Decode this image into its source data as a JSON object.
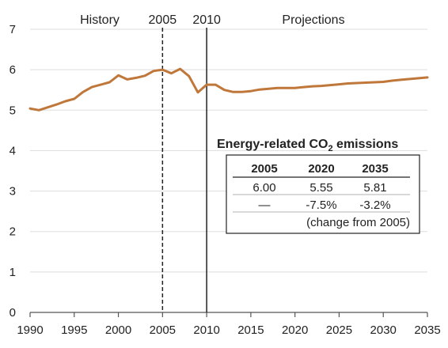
{
  "chart_data": {
    "type": "line",
    "title": "",
    "xlabel": "",
    "ylabel": "",
    "xlim": [
      1990,
      2035
    ],
    "ylim": [
      0,
      7
    ],
    "x_ticks": [
      1990,
      1995,
      2000,
      2005,
      2010,
      2015,
      2020,
      2025,
      2030,
      2035
    ],
    "y_ticks": [
      0,
      1,
      2,
      3,
      4,
      5,
      6,
      7
    ],
    "grid": "horizontal",
    "series": [
      {
        "color": "#c0773a",
        "x": [
          1990,
          1991,
          1992,
          1993,
          1994,
          1995,
          1996,
          1997,
          1998,
          1999,
          2000,
          2001,
          2002,
          2003,
          2004,
          2005,
          2006,
          2007,
          2008,
          2009,
          2010,
          2011,
          2012,
          2013,
          2014,
          2015,
          2016,
          2017,
          2018,
          2019,
          2020,
          2021,
          2022,
          2023,
          2024,
          2025,
          2026,
          2027,
          2028,
          2029,
          2030,
          2031,
          2032,
          2033,
          2034,
          2035
        ],
        "y": [
          5.04,
          5.0,
          5.07,
          5.14,
          5.22,
          5.28,
          5.45,
          5.57,
          5.63,
          5.69,
          5.86,
          5.76,
          5.8,
          5.85,
          5.97,
          6.0,
          5.91,
          6.02,
          5.84,
          5.44,
          5.63,
          5.63,
          5.5,
          5.45,
          5.45,
          5.47,
          5.51,
          5.53,
          5.55,
          5.55,
          5.55,
          5.57,
          5.59,
          5.6,
          5.62,
          5.64,
          5.66,
          5.67,
          5.68,
          5.69,
          5.7,
          5.73,
          5.75,
          5.77,
          5.79,
          5.81
        ]
      }
    ],
    "reference_lines": [
      {
        "x": 2005,
        "style": "dashed",
        "label": "2005"
      },
      {
        "x": 2010,
        "style": "solid",
        "label": "2010"
      }
    ],
    "region_labels": {
      "history": "History",
      "projections": "Projections"
    },
    "annotation_box": {
      "title": "Energy-related CO",
      "title_sub": "2",
      "title_rest": " emissions",
      "headers": [
        "2005",
        "2020",
        "2035"
      ],
      "rows": [
        [
          "6.00",
          "5.55",
          "5.81"
        ],
        [
          "—",
          "-7.5%",
          "-3.2%"
        ]
      ],
      "note": "(change from 2005)"
    }
  }
}
